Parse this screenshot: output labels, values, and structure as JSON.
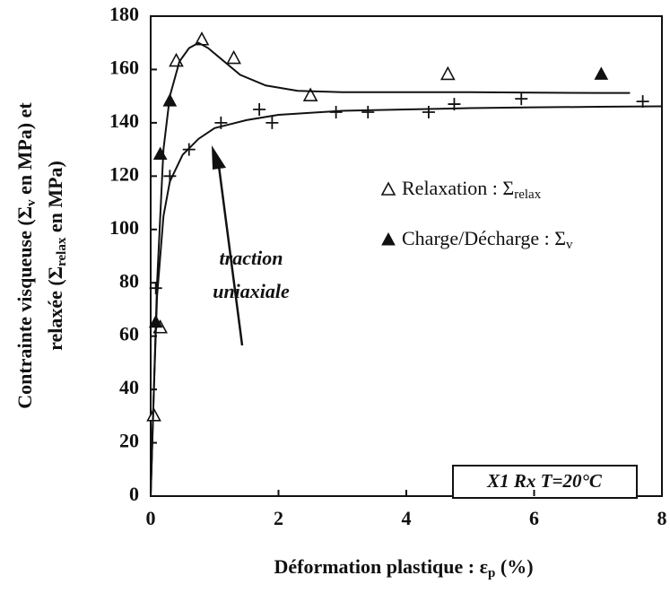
{
  "chart_data": {
    "type": "scatter",
    "y_label": [
      [
        "Contrainte visqueuse (Σ",
        "v",
        " en MPa) et"
      ],
      [
        "relaxée (Σ",
        "relax",
        " en MPa)"
      ]
    ],
    "x_label": [
      "Déformation plastique : ε",
      "p",
      " (%)"
    ],
    "annotation": [
      "traction",
      "uniaxiale"
    ],
    "box_label": "X1 Rx T=20°C",
    "xlim": [
      0,
      8
    ],
    "xticks": [
      0,
      2,
      4,
      6,
      8
    ],
    "ylim": [
      0,
      180
    ],
    "yticks": [
      0,
      20,
      40,
      60,
      80,
      100,
      120,
      140,
      160,
      180
    ],
    "series": [
      {
        "name": "Relaxation : Σ",
        "name_subscript": "relax",
        "marker": "open-triangle",
        "color": "#111",
        "x": [
          0.05,
          0.15,
          0.4,
          0.8,
          1.3,
          2.5,
          4.65
        ],
        "values": [
          30,
          63,
          163,
          171,
          164,
          150,
          158
        ]
      },
      {
        "name": "Charge/Décharge : Σ",
        "name_subscript": "v",
        "marker": "filled-triangle",
        "color": "#111",
        "x": [
          0.08,
          0.15,
          0.3,
          7.05
        ],
        "values": [
          65,
          128,
          148,
          158
        ]
      },
      {
        "marker": "cross",
        "color": "#111",
        "x": [
          0.08,
          0.3,
          0.6,
          1.1,
          1.7,
          1.9,
          2.9,
          3.4,
          4.35,
          4.75,
          5.8,
          7.7
        ],
        "values": [
          78,
          120,
          130,
          140,
          145,
          140,
          144,
          144,
          144,
          147,
          149,
          148
        ]
      },
      {
        "marker": "line",
        "color": "#111",
        "x": [
          0,
          0.05,
          0.1,
          0.2,
          0.3,
          0.45,
          0.6,
          0.75,
          0.9,
          1.1,
          1.4,
          1.8,
          2.3,
          3,
          4,
          5,
          6,
          7,
          7.5
        ],
        "values": [
          0,
          40,
          80,
          130,
          150,
          163,
          168,
          170,
          168,
          164,
          158,
          154,
          152,
          151.5,
          151.5,
          151.5,
          151.3,
          151.2,
          151.2
        ]
      },
      {
        "marker": "line",
        "color": "#111",
        "x": [
          0,
          0.05,
          0.1,
          0.2,
          0.3,
          0.5,
          0.75,
          1,
          1.5,
          2,
          3,
          4,
          5,
          6,
          7,
          8
        ],
        "values": [
          0,
          40,
          75,
          105,
          118,
          128,
          134,
          138,
          141,
          143,
          144.5,
          145,
          145.5,
          145.8,
          146,
          146.2
        ]
      }
    ]
  }
}
